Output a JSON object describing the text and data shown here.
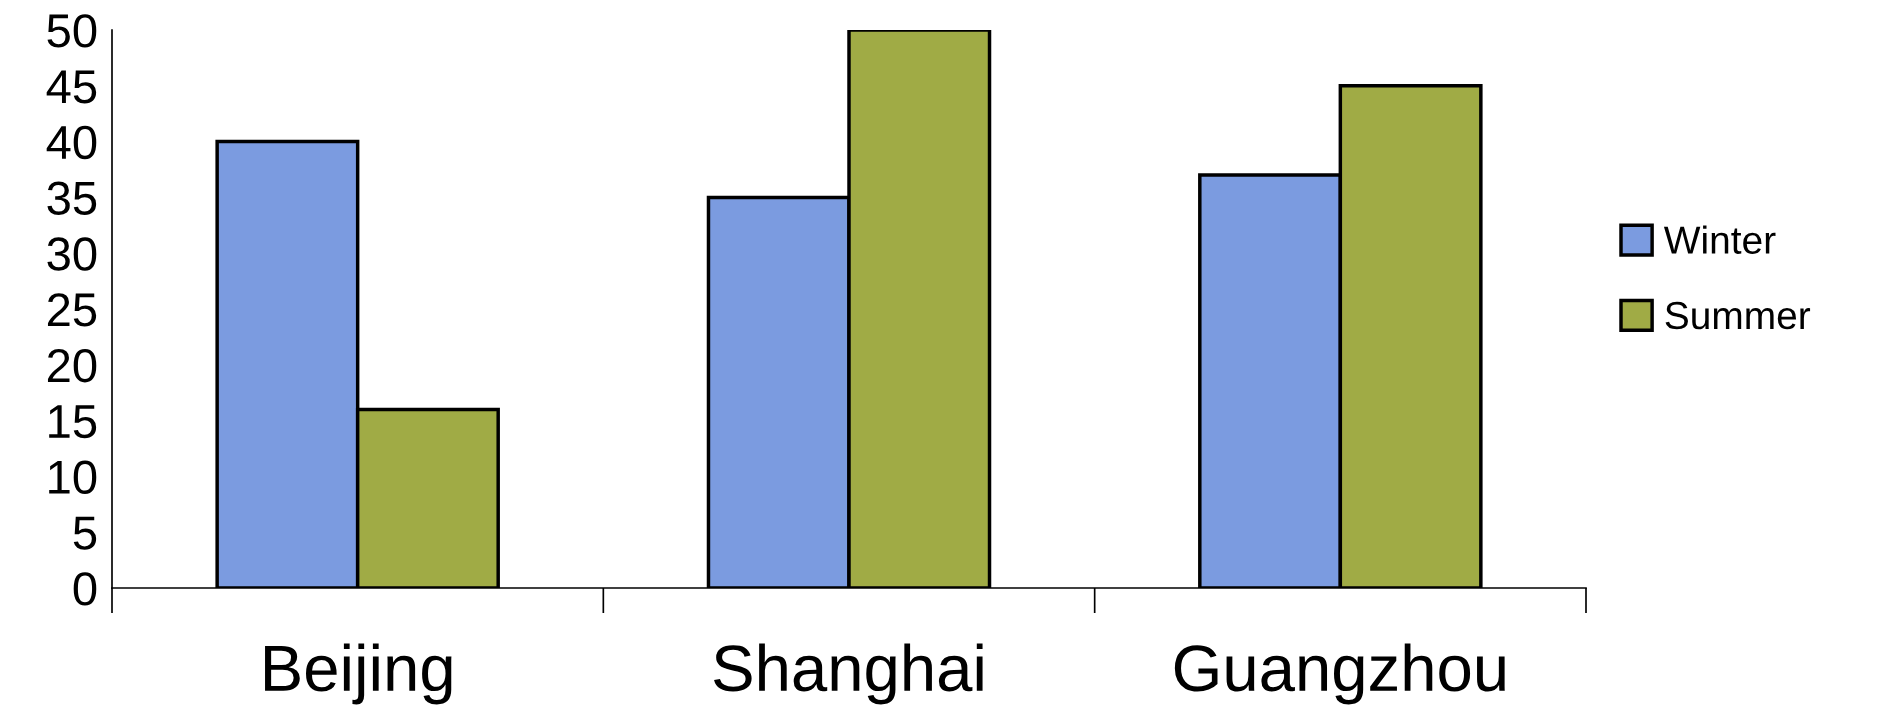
{
  "chart_data": {
    "type": "bar",
    "categories": [
      "Beijing",
      "Shanghai",
      "Guangzhou"
    ],
    "series": [
      {
        "name": "Winter",
        "color": "#7b9be0",
        "values": [
          40,
          35,
          37
        ]
      },
      {
        "name": "Summer",
        "color": "#a0ab45",
        "values": [
          16,
          50,
          45
        ]
      }
    ],
    "ylim": [
      0,
      50
    ],
    "yticks": [
      0,
      5,
      10,
      15,
      20,
      25,
      30,
      35,
      40,
      45,
      50
    ],
    "grid": false,
    "legend": "right"
  }
}
